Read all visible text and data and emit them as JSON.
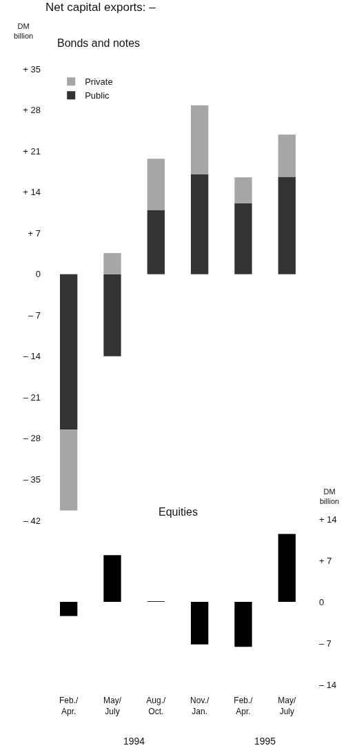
{
  "chart_data": [
    {
      "type": "bar",
      "title": "Net capital exports: –",
      "subtitle": "Bonds and notes",
      "ylabel": "DM billion",
      "categories": [
        "Feb./\nApr.",
        "May/\nJuly",
        "Aug./\nOct.",
        "Nov./\nJan.",
        "Feb./\nApr.",
        "May/\nJuly"
      ],
      "stacked": true,
      "series": [
        {
          "name": "Public",
          "color": "#333333",
          "values": [
            -26.5,
            -14.0,
            10.9,
            17.0,
            12.1,
            16.6
          ]
        },
        {
          "name": "Private",
          "color": "#a6a6a6",
          "values": [
            -13.8,
            3.6,
            8.8,
            11.8,
            4.4,
            7.2
          ]
        }
      ],
      "ylim": [
        -42,
        35
      ],
      "yticks": [
        {
          "value": 35,
          "label": "+ 35"
        },
        {
          "value": 28,
          "label": "+ 28"
        },
        {
          "value": 21,
          "label": "+ 21"
        },
        {
          "value": 14,
          "label": "+ 14"
        },
        {
          "value": 7,
          "label": "+ 7"
        },
        {
          "value": 0,
          "label": "0"
        },
        {
          "value": -7,
          "label": "– 7"
        },
        {
          "value": -14,
          "label": "– 14"
        },
        {
          "value": -21,
          "label": "– 21"
        },
        {
          "value": -28,
          "label": "– 28"
        },
        {
          "value": -35,
          "label": "– 35"
        },
        {
          "value": -42,
          "label": "– 42"
        }
      ],
      "legend": "top left",
      "tick_labels": "y"
    },
    {
      "type": "bar",
      "title": "Equities",
      "ylabel": "DM billion",
      "categories": [
        null,
        null,
        null,
        null,
        null,
        null
      ],
      "values": [
        -2.4,
        7.9,
        0.1,
        -7.2,
        -7.6,
        11.5
      ],
      "color": "#000000",
      "ylim": [
        -14,
        14
      ],
      "yticks": [
        {
          "value": 14,
          "label": "+ 14"
        },
        {
          "value": 7,
          "label": "+ 7"
        },
        {
          "value": 0,
          "label": "0"
        },
        {
          "value": -7,
          "label": "– 7"
        },
        {
          "value": -14,
          "label": "– 14"
        }
      ],
      "annotations": [
        "1994",
        "1995"
      ]
    }
  ]
}
